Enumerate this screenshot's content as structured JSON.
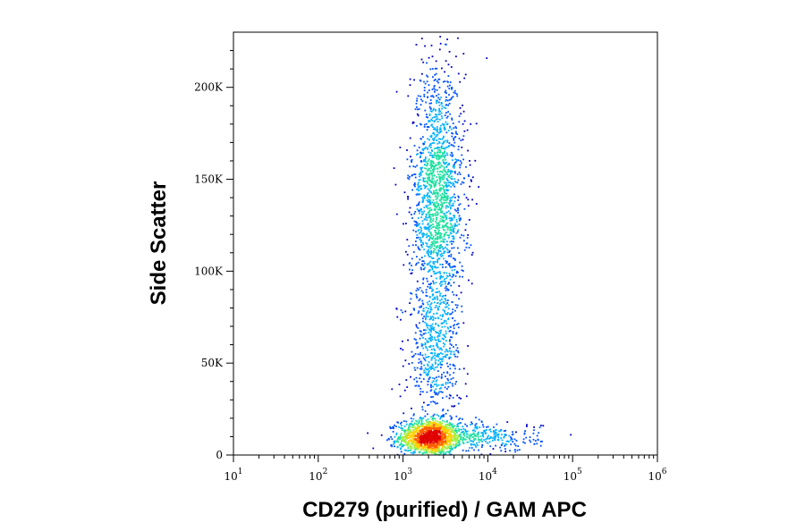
{
  "chart_data": {
    "type": "scatter",
    "subtype": "flow-cytometry density dot plot",
    "xlabel": "CD279 (purified) / GAM APC",
    "ylabel": "Side Scatter",
    "x_scale": "log",
    "xlim": [
      10,
      1000000
    ],
    "ylim": [
      0,
      230000
    ],
    "x_ticks": [
      {
        "base": "10",
        "exp": "1"
      },
      {
        "base": "10",
        "exp": "2"
      },
      {
        "base": "10",
        "exp": "3"
      },
      {
        "base": "10",
        "exp": "4"
      },
      {
        "base": "10",
        "exp": "5"
      },
      {
        "base": "10",
        "exp": "6"
      }
    ],
    "y_ticks": [
      {
        "value": 0,
        "label": "0"
      },
      {
        "value": 50000,
        "label": "50K"
      },
      {
        "value": 100000,
        "label": "100K"
      },
      {
        "value": 150000,
        "label": "150K"
      },
      {
        "value": 200000,
        "label": "200K"
      }
    ],
    "density_colors": [
      "#0000c8",
      "#0050ff",
      "#00b0ff",
      "#20e0a0",
      "#a0f040",
      "#ffd000",
      "#ff6000",
      "#e00000"
    ],
    "populations": [
      {
        "name": "",
        "x_center": 2000,
        "x_log_spread": 0.18,
        "y_center": 10000,
        "y_spread": 5000,
        "events": 1300
      },
      {
        "name": "",
        "x_center": 2500,
        "x_log_spread": 0.16,
        "y_center": 140000,
        "y_spread": 35000,
        "events": 1700
      },
      {
        "name": "",
        "x_center": 2300,
        "x_log_spread": 0.15,
        "y_center": 55000,
        "y_spread": 20000,
        "events": 500
      },
      {
        "name": "",
        "x_center": 8000,
        "x_log_spread": 0.35,
        "y_center": 10000,
        "y_spread": 4000,
        "events": 350
      }
    ],
    "grid": false,
    "legend": "none"
  }
}
